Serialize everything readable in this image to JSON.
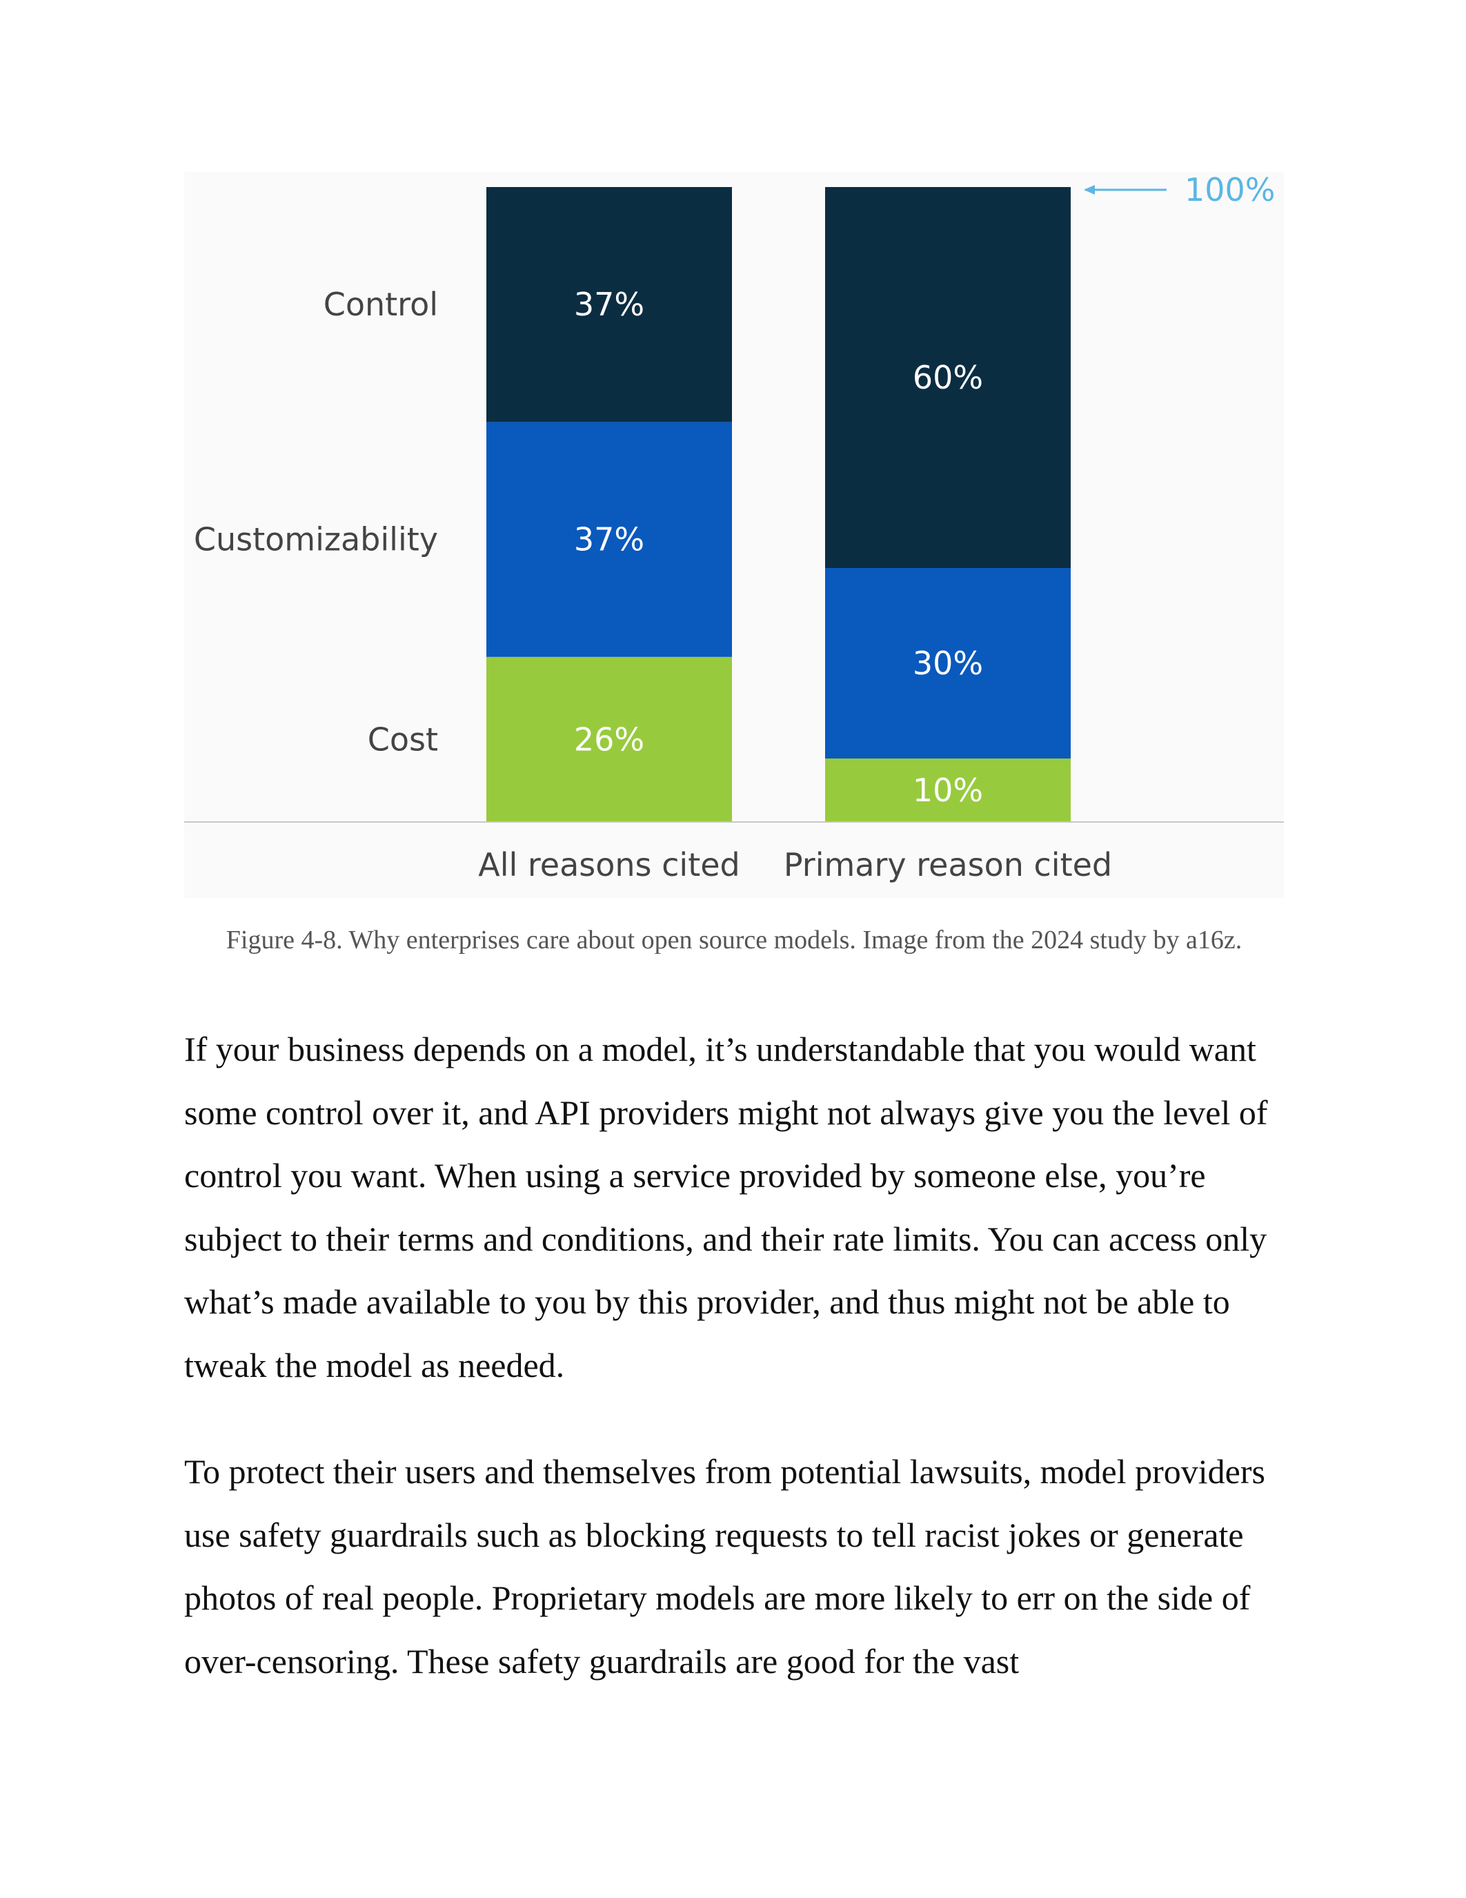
{
  "colors": {
    "control": "#0b2d42",
    "customizability": "#0a59bd",
    "cost": "#98ca3d",
    "reference": "#5bb6e4",
    "label_text": "#444444",
    "bar_text": "#ffffff",
    "axis_line": "#c8c8c8"
  },
  "chart_data": {
    "type": "bar",
    "stacked": true,
    "categories": [
      "All reasons cited",
      "Primary reason cited"
    ],
    "series": [
      {
        "name": "Cost",
        "values": [
          26,
          10
        ],
        "labels": [
          "26%",
          "10%"
        ],
        "color": "#98ca3d"
      },
      {
        "name": "Customizability",
        "values": [
          37,
          30
        ],
        "labels": [
          "37%",
          "30%"
        ],
        "color": "#0a59bd"
      },
      {
        "name": "Control",
        "values": [
          37,
          60
        ],
        "labels": [
          "37%",
          "60%"
        ],
        "color": "#0b2d42"
      }
    ],
    "ylim": [
      0,
      100
    ],
    "reference_label": "100%",
    "legend_placement": "left",
    "grid": false
  },
  "figure": {
    "caption": "Figure 4-8. Why enterprises care about open source models. Image from the 2024 study by a16z."
  },
  "body": {
    "paragraphs": [
      "If your business depends on a model, it’s understandable that you would want some control over it, and API providers might not always give you the level of control you want. When using a service provided by someone else, you’re subject to their terms and conditions, and their rate limits. You can access only what’s made available to you by this provider, and thus might not be able to tweak the model as needed.",
      "To protect their users and themselves from potential lawsuits, model providers use safety guardrails such as blocking requests to tell racist jokes or generate photos of real people. Proprietary models are more likely to err on the side of over-censoring. These safety guardrails are good for the vast"
    ]
  }
}
